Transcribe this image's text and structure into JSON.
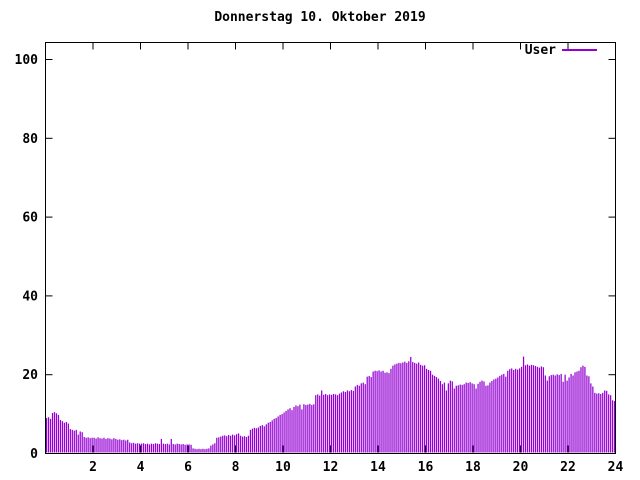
{
  "page": {
    "background": "#ffffff"
  },
  "header": {
    "title": "Donnerstag 10. Oktober 2019"
  },
  "legend": {
    "label": "User",
    "color": "#9400d3"
  },
  "chart_data": {
    "type": "bar",
    "title": "Donnerstag 10. Oktober 2019",
    "xlabel": "",
    "ylabel": "",
    "xlim": [
      0,
      24
    ],
    "ylim": [
      0,
      104
    ],
    "xticks": [
      2,
      4,
      6,
      8,
      10,
      12,
      14,
      16,
      18,
      20,
      22,
      24
    ],
    "yticks": [
      0,
      20,
      40,
      60,
      80,
      100
    ],
    "grid": false,
    "legend_position": "top-right",
    "axis_color": "#000000",
    "bar_color": "#9400d3",
    "series": [
      {
        "name": "User",
        "color": "#9400d3",
        "start_hour": 0,
        "interval_minutes": 5,
        "values": [
          9.0,
          9.2,
          8.8,
          10.3,
          10.5,
          10.2,
          9.8,
          8.5,
          8.2,
          7.8,
          8.0,
          7.6,
          6.2,
          6.0,
          5.8,
          6.0,
          4.8,
          5.6,
          5.4,
          4.2,
          4.0,
          4.1,
          3.9,
          4.0,
          4.0,
          3.8,
          4.1,
          3.9,
          3.8,
          4.0,
          3.7,
          3.9,
          3.8,
          3.6,
          3.9,
          3.7,
          3.5,
          3.6,
          3.4,
          3.5,
          3.3,
          3.5,
          2.8,
          2.6,
          2.7,
          2.5,
          2.6,
          2.5,
          2.5,
          2.6,
          2.4,
          2.5,
          2.3,
          2.5,
          2.4,
          2.6,
          2.5,
          2.4,
          3.7,
          2.5,
          2.4,
          2.5,
          2.3,
          3.7,
          2.4,
          2.3,
          2.5,
          2.4,
          2.3,
          2.4,
          2.2,
          2.3,
          2.3,
          2.2,
          1.3,
          1.2,
          1.1,
          1.2,
          1.1,
          1.2,
          1.1,
          1.2,
          1.3,
          2.0,
          2.3,
          2.6,
          4.0,
          4.1,
          4.3,
          4.5,
          4.6,
          4.4,
          4.7,
          4.5,
          4.8,
          4.6,
          4.9,
          5.1,
          4.5,
          4.3,
          4.4,
          4.2,
          4.5,
          6.0,
          6.3,
          6.5,
          6.4,
          6.6,
          7.0,
          7.2,
          6.9,
          7.4,
          7.8,
          8.0,
          8.4,
          8.8,
          9.0,
          9.4,
          9.8,
          10.0,
          10.4,
          10.8,
          11.2,
          11.5,
          11.0,
          11.8,
          12.2,
          12.0,
          12.4,
          11.2,
          12.5,
          12.3,
          12.4,
          12.6,
          12.3,
          12.5,
          14.8,
          15.0,
          14.7,
          16.0,
          14.9,
          15.1,
          14.8,
          15.0,
          14.9,
          15.1,
          15.0,
          14.8,
          15.2,
          15.5,
          15.8,
          15.6,
          16.0,
          15.8,
          16.1,
          15.9,
          17.0,
          17.4,
          17.2,
          17.8,
          18.0,
          17.6,
          19.5,
          19.7,
          19.4,
          20.8,
          21.0,
          20.9,
          21.1,
          20.8,
          21.0,
          20.5,
          20.6,
          20.4,
          21.5,
          22.3,
          22.6,
          22.8,
          23.0,
          22.9,
          23.1,
          23.3,
          23.0,
          23.4,
          24.5,
          23.2,
          23.0,
          22.8,
          23.1,
          22.5,
          22.3,
          22.4,
          21.5,
          21.2,
          21.0,
          20.0,
          19.7,
          19.4,
          19.0,
          18.4,
          17.6,
          18.0,
          16.0,
          17.8,
          18.5,
          18.3,
          16.5,
          17.2,
          17.3,
          17.5,
          17.4,
          17.6,
          18.0,
          17.9,
          18.1,
          17.8,
          17.6,
          16.5,
          17.7,
          18.2,
          18.5,
          18.3,
          17.2,
          17.3,
          18.0,
          18.4,
          18.8,
          19.0,
          19.3,
          19.7,
          20.0,
          20.2,
          19.5,
          21.0,
          21.4,
          21.6,
          21.2,
          21.5,
          21.3,
          21.6,
          22.0,
          24.6,
          22.4,
          22.6,
          22.3,
          22.5,
          22.4,
          22.2,
          22.0,
          21.8,
          22.1,
          21.9,
          19.8,
          18.5,
          19.6,
          19.9,
          20.0,
          19.8,
          20.1,
          19.9,
          20.2,
          18.2,
          20.0,
          18.5,
          19.3,
          20.2,
          19.8,
          20.6,
          20.8,
          21.0,
          21.9,
          22.3,
          22.0,
          19.8,
          19.6,
          17.8,
          17.0,
          15.4,
          15.2,
          15.3,
          15.1,
          15.4,
          16.0,
          15.9,
          15.0,
          14.8,
          13.5,
          13.3
        ]
      }
    ]
  }
}
